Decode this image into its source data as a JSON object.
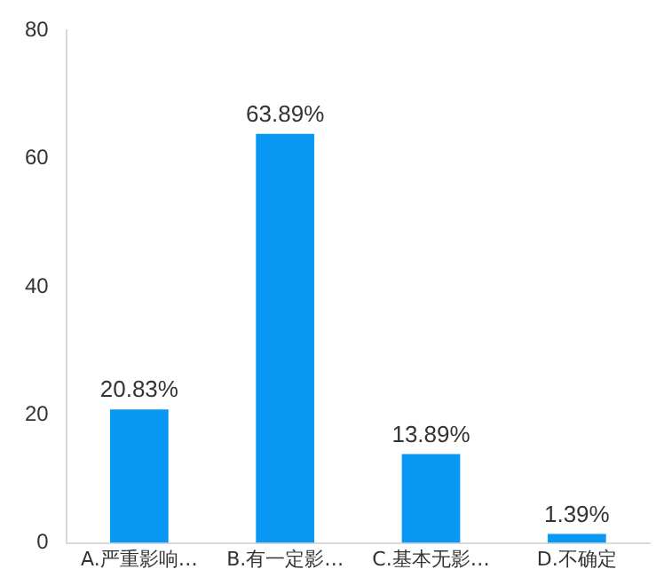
{
  "chart_data": {
    "type": "bar",
    "categories": [
      "A.严重影响…",
      "B.有一定影…",
      "C.基本无影…",
      "D.不确定"
    ],
    "values": [
      20.83,
      63.89,
      13.89,
      1.39
    ],
    "color": "#0a98f5",
    "ylim": [
      0,
      80
    ],
    "yticks": [
      0,
      20,
      40,
      60,
      80
    ],
    "grid": false,
    "legend": false,
    "value_labels": [
      "20.83%",
      "63.89%",
      "13.89%",
      "1.39%"
    ]
  }
}
